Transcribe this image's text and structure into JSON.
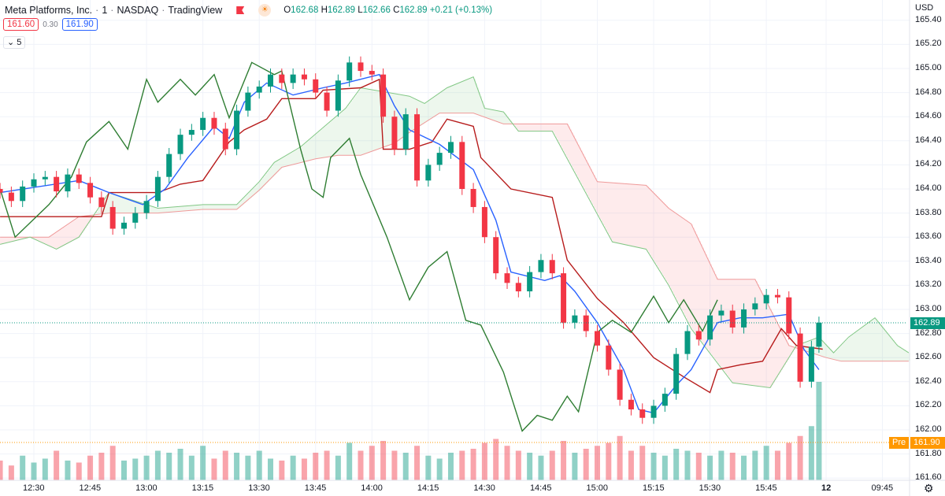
{
  "header": {
    "symbol": "Meta Platforms, Inc.",
    "interval": "1",
    "exchange": "NASDAQ",
    "source": "TradingView",
    "o_label": "O",
    "o": "162.68",
    "h_label": "H",
    "h": "162.89",
    "l_label": "L",
    "l": "162.66",
    "c_label": "C",
    "c": "162.89",
    "change": "+0.21 (+0.13%)"
  },
  "quote": {
    "bid": "161.60",
    "spread": "0.30",
    "ask": "161.90"
  },
  "indicators_toggle": "5",
  "currency": "USD",
  "colors": {
    "up": "#089981",
    "down": "#f23645",
    "conversion": "#2962ff",
    "base": "#b71c1c",
    "lagging": "#2e7d32",
    "span_a": "#81c784",
    "span_b": "#ef9a9a",
    "premarket": "#ff9800"
  },
  "last_price_tag": "162.89",
  "premarket_tag": {
    "label": "Pre",
    "price": "161.90"
  },
  "chart_data": {
    "type": "candlestick",
    "y_ticks": [
      "165.40",
      "165.20",
      "165.00",
      "164.80",
      "164.60",
      "164.40",
      "164.20",
      "164.00",
      "163.80",
      "163.60",
      "163.40",
      "163.20",
      "163.00",
      "162.80",
      "162.60",
      "162.40",
      "162.20",
      "162.00",
      "161.80",
      "161.60"
    ],
    "x_ticks": [
      "12:30",
      "12:45",
      "13:00",
      "13:15",
      "13:30",
      "13:45",
      "14:00",
      "14:15",
      "14:30",
      "14:45",
      "15:00",
      "15:15",
      "15:30",
      "15:45",
      "12",
      "09:45"
    ],
    "candles": {
      "times": [
        "12:21",
        "12:24",
        "12:27",
        "12:30",
        "12:33",
        "12:36",
        "12:39",
        "12:42",
        "12:45",
        "12:48",
        "12:51",
        "12:54",
        "12:57",
        "13:00",
        "13:03",
        "13:06",
        "13:09",
        "13:12",
        "13:15",
        "13:18",
        "13:21",
        "13:24",
        "13:27",
        "13:30",
        "13:33",
        "13:36",
        "13:39",
        "13:42",
        "13:45",
        "13:48",
        "13:51",
        "13:54",
        "13:57",
        "14:00",
        "14:03",
        "14:06",
        "14:09",
        "14:12",
        "14:15",
        "14:18",
        "14:21",
        "14:24",
        "14:27",
        "14:30",
        "14:33",
        "14:36",
        "14:39",
        "14:42",
        "14:45",
        "14:48",
        "14:51",
        "14:54",
        "14:57",
        "15:00",
        "15:03",
        "15:06",
        "15:09",
        "15:12",
        "15:15",
        "15:18",
        "15:21",
        "15:24",
        "15:27",
        "15:30",
        "15:33",
        "15:36",
        "15:39",
        "15:42",
        "15:45",
        "15:48",
        "15:51",
        "15:54",
        "15:57",
        "15:59"
      ],
      "close": [
        163.97,
        163.9,
        164.02,
        164.08,
        164.1,
        163.98,
        164.12,
        164.05,
        163.93,
        163.85,
        163.67,
        163.72,
        163.8,
        163.9,
        164.1,
        164.29,
        164.45,
        164.49,
        164.59,
        164.5,
        164.33,
        164.65,
        164.8,
        164.85,
        164.95,
        164.88,
        164.95,
        164.91,
        164.8,
        164.65,
        164.9,
        165.05,
        164.98,
        164.95,
        164.6,
        164.33,
        164.62,
        164.07,
        164.2,
        164.3,
        164.39,
        164.0,
        163.85,
        163.6,
        163.3,
        163.22,
        163.15,
        163.31,
        163.41,
        163.3,
        162.89,
        162.95,
        162.82,
        162.7,
        162.5,
        162.25,
        162.17,
        162.1,
        162.2,
        162.3,
        162.63,
        162.82,
        162.75,
        162.95,
        162.99,
        162.85,
        163.0,
        163.05,
        163.12,
        163.1,
        162.8,
        162.4,
        162.69,
        162.89
      ],
      "volume": [
        20,
        15,
        25,
        18,
        22,
        30,
        20,
        18,
        25,
        28,
        35,
        20,
        22,
        25,
        30,
        28,
        32,
        25,
        35,
        22,
        30,
        28,
        25,
        30,
        22,
        20,
        25,
        22,
        28,
        30,
        25,
        38,
        30,
        35,
        40,
        30,
        28,
        35,
        25,
        22,
        28,
        30,
        32,
        38,
        42,
        35,
        30,
        28,
        25,
        30,
        40,
        28,
        32,
        35,
        38,
        45,
        30,
        35,
        28,
        25,
        32,
        30,
        28,
        25,
        30,
        28,
        25,
        30,
        35,
        30,
        38,
        45,
        55,
        100
      ]
    },
    "lines": [
      {
        "key": "span_b",
        "points": [
          [
            "12:21",
            163.6
          ],
          [
            "12:34",
            163.6
          ],
          [
            "12:42",
            163.77
          ],
          [
            "12:50",
            163.8
          ],
          [
            "13:03",
            163.8
          ],
          [
            "13:15",
            163.83
          ],
          [
            "13:24",
            163.83
          ],
          [
            "13:30",
            163.99
          ],
          [
            "13:36",
            164.18
          ],
          [
            "13:45",
            164.25
          ],
          [
            "13:51",
            164.28
          ],
          [
            "13:57",
            164.28
          ],
          [
            "14:06",
            164.38
          ],
          [
            "14:10",
            164.47
          ],
          [
            "14:18",
            164.63
          ],
          [
            "14:27",
            164.63
          ],
          [
            "14:35",
            164.54
          ],
          [
            "14:52",
            164.54
          ],
          [
            "15:00",
            164.06
          ],
          [
            "15:13",
            164.03
          ],
          [
            "15:19",
            163.84
          ],
          [
            "15:25",
            163.71
          ],
          [
            "15:32",
            163.25
          ],
          [
            "15:42",
            163.25
          ],
          [
            "15:51",
            162.7
          ],
          [
            "09:30",
            162.6
          ],
          [
            "09:34",
            162.57
          ],
          [
            "09:52",
            162.57
          ]
        ]
      },
      {
        "key": "span_a",
        "points": [
          [
            "12:21",
            163.54
          ],
          [
            "12:29",
            163.6
          ],
          [
            "12:36",
            163.5
          ],
          [
            "12:42",
            163.6
          ],
          [
            "12:50",
            163.97
          ],
          [
            "13:03",
            163.84
          ],
          [
            "13:15",
            163.87
          ],
          [
            "13:24",
            163.87
          ],
          [
            "13:30",
            164.06
          ],
          [
            "13:34",
            164.22
          ],
          [
            "13:41",
            164.35
          ],
          [
            "13:47",
            164.51
          ],
          [
            "13:53",
            164.67
          ],
          [
            "13:57",
            164.84
          ],
          [
            "14:10",
            164.77
          ],
          [
            "14:14",
            164.71
          ],
          [
            "14:20",
            164.84
          ],
          [
            "14:27",
            164.93
          ],
          [
            "14:30",
            164.67
          ],
          [
            "14:35",
            164.64
          ],
          [
            "14:39",
            164.48
          ],
          [
            "14:48",
            164.48
          ],
          [
            "14:56",
            164.02
          ],
          [
            "15:04",
            163.56
          ],
          [
            "15:13",
            163.5
          ],
          [
            "15:19",
            163.2
          ],
          [
            "15:25",
            162.84
          ],
          [
            "15:36",
            162.39
          ],
          [
            "15:46",
            162.35
          ],
          [
            "15:53",
            162.7
          ],
          [
            "15:59",
            162.77
          ],
          [
            "09:32",
            162.64
          ],
          [
            "09:36",
            162.77
          ],
          [
            "09:43",
            162.93
          ],
          [
            "09:49",
            162.7
          ],
          [
            "09:52",
            162.64
          ]
        ]
      },
      {
        "key": "base",
        "points": [
          [
            "12:21",
            163.77
          ],
          [
            "12:48",
            163.77
          ],
          [
            "12:50",
            163.97
          ],
          [
            "13:03",
            163.97
          ],
          [
            "13:09",
            164.04
          ],
          [
            "13:15",
            164.07
          ],
          [
            "13:22",
            164.39
          ],
          [
            "13:26",
            164.49
          ],
          [
            "13:32",
            164.58
          ],
          [
            "13:36",
            164.75
          ],
          [
            "13:45",
            164.75
          ],
          [
            "13:47",
            164.82
          ],
          [
            "13:57",
            164.84
          ],
          [
            "14:02",
            164.91
          ],
          [
            "14:03",
            164.33
          ],
          [
            "14:10",
            164.33
          ],
          [
            "14:16",
            164.39
          ],
          [
            "14:20",
            164.58
          ],
          [
            "14:27",
            164.52
          ],
          [
            "14:29",
            164.26
          ],
          [
            "14:37",
            164.0
          ],
          [
            "14:48",
            163.93
          ],
          [
            "14:52",
            163.41
          ],
          [
            "15:00",
            163.09
          ],
          [
            "15:07",
            162.89
          ],
          [
            "15:15",
            162.6
          ],
          [
            "15:23",
            162.44
          ],
          [
            "15:30",
            162.31
          ],
          [
            "15:32",
            162.5
          ],
          [
            "15:38",
            162.54
          ],
          [
            "15:44",
            162.57
          ],
          [
            "15:49",
            162.84
          ],
          [
            "15:53",
            162.7
          ],
          [
            "16:00",
            162.67
          ]
        ]
      },
      {
        "key": "conversion",
        "points": [
          [
            "12:21",
            163.97
          ],
          [
            "12:42",
            164.07
          ],
          [
            "12:50",
            163.97
          ],
          [
            "12:59",
            163.87
          ],
          [
            "13:05",
            164.0
          ],
          [
            "13:11",
            164.26
          ],
          [
            "13:18",
            164.52
          ],
          [
            "13:22",
            164.42
          ],
          [
            "13:26",
            164.72
          ],
          [
            "13:32",
            164.88
          ],
          [
            "13:39",
            164.78
          ],
          [
            "13:47",
            164.84
          ],
          [
            "13:53",
            164.88
          ],
          [
            "14:02",
            164.95
          ],
          [
            "14:06",
            164.69
          ],
          [
            "14:10",
            164.49
          ],
          [
            "14:18",
            164.37
          ],
          [
            "14:27",
            164.16
          ],
          [
            "14:33",
            163.74
          ],
          [
            "14:37",
            163.31
          ],
          [
            "14:46",
            163.24
          ],
          [
            "14:50",
            163.28
          ],
          [
            "14:54",
            163.15
          ],
          [
            "15:00",
            162.89
          ],
          [
            "15:07",
            162.5
          ],
          [
            "15:11",
            162.17
          ],
          [
            "15:15",
            162.14
          ],
          [
            "15:21",
            162.37
          ],
          [
            "15:25",
            162.5
          ],
          [
            "15:32",
            162.89
          ],
          [
            "15:38",
            162.93
          ],
          [
            "15:44",
            162.93
          ],
          [
            "15:51",
            162.96
          ],
          [
            "15:55",
            162.67
          ],
          [
            "15:59",
            162.5
          ]
        ]
      },
      {
        "key": "lagging",
        "points": [
          [
            "12:21",
            164.0
          ],
          [
            "12:25",
            163.6
          ],
          [
            "12:34",
            163.87
          ],
          [
            "12:40",
            164.1
          ],
          [
            "12:44",
            164.39
          ],
          [
            "12:50",
            164.56
          ],
          [
            "12:55",
            164.33
          ],
          [
            "13:00",
            164.91
          ],
          [
            "13:03",
            164.72
          ],
          [
            "13:09",
            164.91
          ],
          [
            "13:13",
            164.78
          ],
          [
            "13:18",
            164.95
          ],
          [
            "13:22",
            164.59
          ],
          [
            "13:28",
            165.05
          ],
          [
            "13:34",
            164.95
          ],
          [
            "13:36",
            164.98
          ],
          [
            "13:41",
            164.33
          ],
          [
            "13:44",
            164.0
          ],
          [
            "13:47",
            163.93
          ],
          [
            "13:49",
            164.26
          ],
          [
            "13:54",
            164.42
          ],
          [
            "13:57",
            164.12
          ],
          [
            "14:04",
            163.6
          ],
          [
            "14:10",
            163.08
          ],
          [
            "14:15",
            163.35
          ],
          [
            "14:20",
            163.48
          ],
          [
            "14:25",
            162.91
          ],
          [
            "14:29",
            162.87
          ],
          [
            "14:35",
            162.48
          ],
          [
            "14:40",
            161.99
          ],
          [
            "14:44",
            162.12
          ],
          [
            "14:48",
            162.08
          ],
          [
            "14:52",
            162.28
          ],
          [
            "14:55",
            162.15
          ],
          [
            "15:00",
            162.81
          ],
          [
            "15:04",
            162.91
          ],
          [
            "15:09",
            162.81
          ],
          [
            "15:15",
            163.11
          ],
          [
            "15:19",
            162.89
          ],
          [
            "15:23",
            163.08
          ],
          [
            "15:28",
            162.82
          ],
          [
            "15:32",
            163.08
          ]
        ]
      }
    ]
  }
}
